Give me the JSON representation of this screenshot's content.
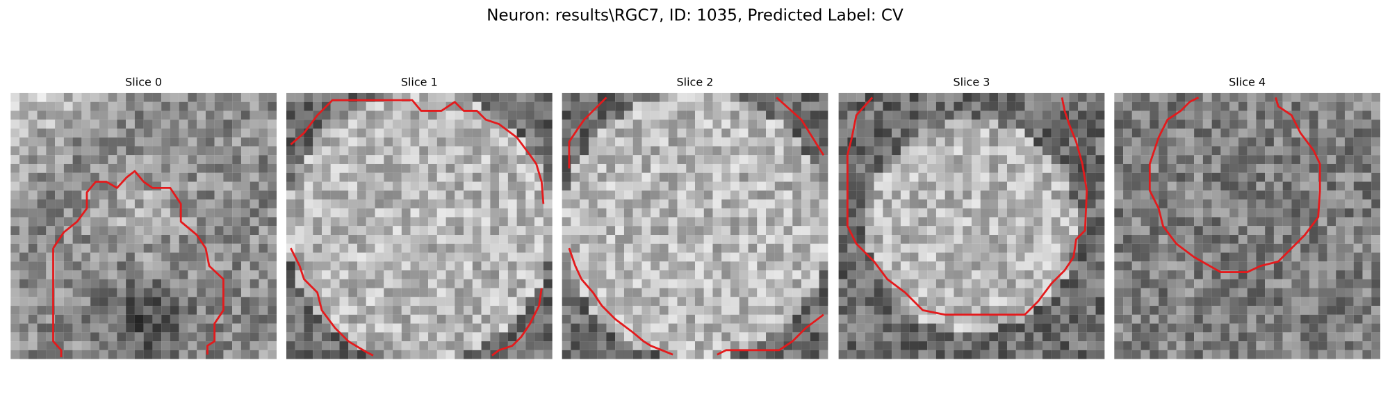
{
  "title": "Neuron: results\\RGC7, ID: 1035, Predicted Label: CV",
  "panels": [
    {
      "title": "Slice 0"
    },
    {
      "title": "Slice 1"
    },
    {
      "title": "Slice 2"
    },
    {
      "title": "Slice 3"
    },
    {
      "title": "Slice 4"
    }
  ]
}
